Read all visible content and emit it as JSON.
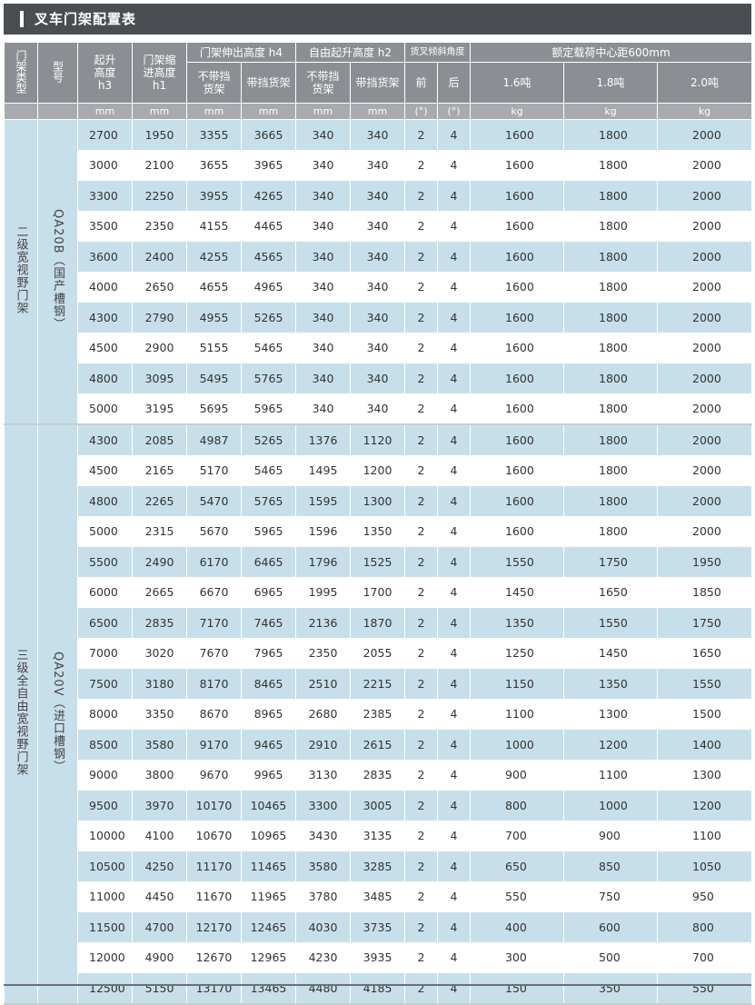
{
  "title": "叉车门架配置表",
  "headers": {
    "mast_type": "门架类型",
    "model": "型号",
    "lift_height": "起升高度h3",
    "retracted_height": "门架缩进高度h1",
    "extended_group": "门架伸出高度 h4",
    "without_backrest": "不带挡货架",
    "with_backrest": "带挡货架",
    "free_lift_group": "自由起升高度 h2",
    "tilt_group": "货叉倾斜角度",
    "tilt_front": "前",
    "tilt_rear": "后",
    "capacity_group": "额定载荷中心距600mm",
    "cap_16": "1.6吨",
    "cap_18": "1.8吨",
    "cap_20": "2.0吨"
  },
  "units": [
    "mm",
    "mm",
    "mm",
    "mm",
    "mm",
    "mm",
    "(°)",
    "(°)",
    "kg",
    "kg",
    "kg"
  ],
  "groups": [
    {
      "mast_type": "二级宽视野门架",
      "model": "QA20B（国产槽钢）",
      "rows": [
        [
          "2700",
          "1950",
          "3355",
          "3665",
          "340",
          "340",
          "2",
          "4",
          "1600",
          "1800",
          "2000"
        ],
        [
          "3000",
          "2100",
          "3655",
          "3965",
          "340",
          "340",
          "2",
          "4",
          "1600",
          "1800",
          "2000"
        ],
        [
          "3300",
          "2250",
          "3955",
          "4265",
          "340",
          "340",
          "2",
          "4",
          "1600",
          "1800",
          "2000"
        ],
        [
          "3500",
          "2350",
          "4155",
          "4465",
          "340",
          "340",
          "2",
          "4",
          "1600",
          "1800",
          "2000"
        ],
        [
          "3600",
          "2400",
          "4255",
          "4565",
          "340",
          "340",
          "2",
          "4",
          "1600",
          "1800",
          "2000"
        ],
        [
          "4000",
          "2650",
          "4655",
          "4965",
          "340",
          "340",
          "2",
          "4",
          "1600",
          "1800",
          "2000"
        ],
        [
          "4300",
          "2790",
          "4955",
          "5265",
          "340",
          "340",
          "2",
          "4",
          "1600",
          "1800",
          "2000"
        ],
        [
          "4500",
          "2900",
          "5155",
          "5465",
          "340",
          "340",
          "2",
          "4",
          "1600",
          "1800",
          "2000"
        ],
        [
          "4800",
          "3095",
          "5495",
          "5765",
          "340",
          "340",
          "2",
          "4",
          "1600",
          "1800",
          "2000"
        ],
        [
          "5000",
          "3195",
          "5695",
          "5965",
          "340",
          "340",
          "2",
          "4",
          "1600",
          "1800",
          "2000"
        ]
      ]
    },
    {
      "mast_type": "三级全自由宽视野门架",
      "model": "QA20V（进口槽钢）",
      "rows": [
        [
          "4300",
          "2085",
          "4987",
          "5265",
          "1376",
          "1120",
          "2",
          "4",
          "1600",
          "1800",
          "2000"
        ],
        [
          "4500",
          "2165",
          "5170",
          "5465",
          "1495",
          "1200",
          "2",
          "4",
          "1600",
          "1800",
          "2000"
        ],
        [
          "4800",
          "2265",
          "5470",
          "5765",
          "1595",
          "1300",
          "2",
          "4",
          "1600",
          "1800",
          "2000"
        ],
        [
          "5000",
          "2315",
          "5670",
          "5965",
          "1596",
          "1350",
          "2",
          "4",
          "1600",
          "1800",
          "2000"
        ],
        [
          "5500",
          "2490",
          "6170",
          "6465",
          "1796",
          "1525",
          "2",
          "4",
          "1550",
          "1750",
          "1950"
        ],
        [
          "6000",
          "2665",
          "6670",
          "6965",
          "1995",
          "1700",
          "2",
          "4",
          "1450",
          "1650",
          "1850"
        ],
        [
          "6500",
          "2835",
          "7170",
          "7465",
          "2136",
          "1870",
          "2",
          "4",
          "1350",
          "1550",
          "1750"
        ],
        [
          "7000",
          "3020",
          "7670",
          "7965",
          "2350",
          "2055",
          "2",
          "4",
          "1250",
          "1450",
          "1650"
        ],
        [
          "7500",
          "3180",
          "8170",
          "8465",
          "2510",
          "2215",
          "2",
          "4",
          "1150",
          "1350",
          "1550"
        ],
        [
          "8000",
          "3350",
          "8670",
          "8965",
          "2680",
          "2385",
          "2",
          "4",
          "1100",
          "1300",
          "1500"
        ],
        [
          "8500",
          "3580",
          "9170",
          "9465",
          "2910",
          "2615",
          "2",
          "4",
          "1000",
          "1200",
          "1400"
        ],
        [
          "9000",
          "3800",
          "9670",
          "9965",
          "3130",
          "2835",
          "2",
          "4",
          "900",
          "1100",
          "1300"
        ],
        [
          "9500",
          "3970",
          "10170",
          "10465",
          "3300",
          "3005",
          "2",
          "4",
          "800",
          "1000",
          "1200"
        ],
        [
          "10000",
          "4100",
          "10670",
          "10965",
          "3430",
          "3135",
          "2",
          "4",
          "700",
          "900",
          "1100"
        ],
        [
          "10500",
          "4250",
          "11170",
          "11465",
          "3580",
          "3285",
          "2",
          "4",
          "650",
          "850",
          "1050"
        ],
        [
          "11000",
          "4450",
          "11670",
          "11965",
          "3780",
          "3485",
          "2",
          "4",
          "550",
          "750",
          "950"
        ],
        [
          "11500",
          "4700",
          "12170",
          "12465",
          "4030",
          "3735",
          "2",
          "4",
          "400",
          "600",
          "800"
        ],
        [
          "12000",
          "4900",
          "12670",
          "12965",
          "4230",
          "3935",
          "2",
          "4",
          "300",
          "500",
          "700"
        ],
        [
          "12500",
          "5150",
          "13170",
          "13465",
          "4480",
          "4185",
          "2",
          "4",
          "150",
          "350",
          "550"
        ]
      ]
    }
  ]
}
